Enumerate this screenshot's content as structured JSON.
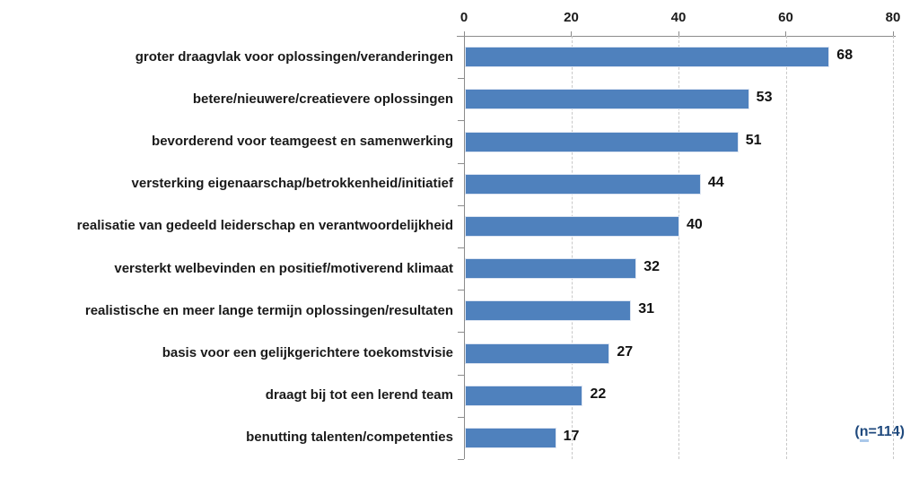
{
  "chart_data": {
    "type": "bar",
    "orientation": "horizontal",
    "title": "",
    "xlabel": "",
    "ylabel": "",
    "xlim": [
      0,
      80
    ],
    "xticks": [
      "0",
      "20",
      "40",
      "60",
      "80"
    ],
    "grid": "vertical-dashed",
    "legend": "none",
    "bar_color": "#4F81BD",
    "categories": [
      "groter draagvlak voor oplossingen/veranderingen",
      "betere/nieuwere/creatievere oplossingen",
      "bevorderend voor teamgeest en samenwerking",
      "versterking eigenaarschap/betrokkenheid/initiatief",
      "realisatie van gedeeld leiderschap en verantwoordelijkheid",
      "versterkt welbevinden en positief/motiverend klimaat",
      "realistische en meer lange termijn oplossingen/resultaten",
      "basis voor een gelijkgerichtere toekomstvisie",
      "draagt bij tot een lerend team",
      "benutting talenten/competenties"
    ],
    "values": [
      68,
      53,
      51,
      44,
      40,
      32,
      31,
      27,
      22,
      17
    ],
    "annotation": {
      "text": "(n=114)",
      "color": "#1F497D",
      "parts": {
        "open": "(",
        "n": "n",
        "rest": "=114)"
      }
    }
  }
}
